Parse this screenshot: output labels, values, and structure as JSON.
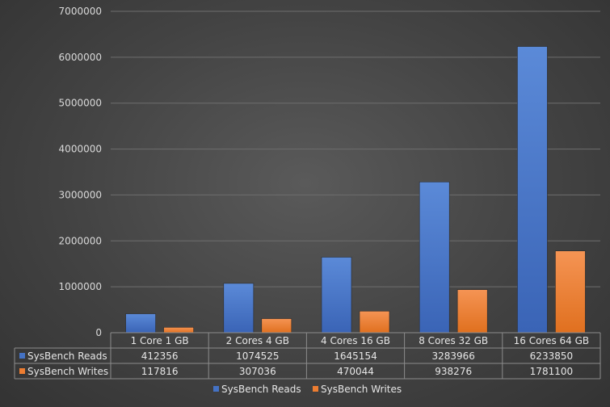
{
  "chart_data": {
    "type": "bar",
    "title": "",
    "xlabel": "",
    "ylabel": "",
    "ylim": [
      0,
      7000000
    ],
    "yticks": [
      "0",
      "1000000",
      "2000000",
      "3000000",
      "4000000",
      "5000000",
      "6000000",
      "7000000"
    ],
    "categories": [
      "1 Core 1 GB",
      "2 Cores 4 GB",
      "4 Cores 16 GB",
      "8 Cores 32 GB",
      "16 Cores 64 GB"
    ],
    "series": [
      {
        "name": "SysBench Reads",
        "color": "#4472c4",
        "values": [
          412356,
          1074525,
          1645154,
          3283966,
          6233850
        ],
        "labels": [
          "412356",
          "1074525",
          "1645154",
          "3283966",
          "6233850"
        ]
      },
      {
        "name": "SysBench Writes",
        "color": "#ed7d31",
        "values": [
          117816,
          307036,
          470044,
          938276,
          1781100
        ],
        "labels": [
          "117816",
          "307036",
          "470044",
          "938276",
          "1781100"
        ]
      }
    ],
    "grid": true,
    "legend": "bottom",
    "data_table": true
  }
}
